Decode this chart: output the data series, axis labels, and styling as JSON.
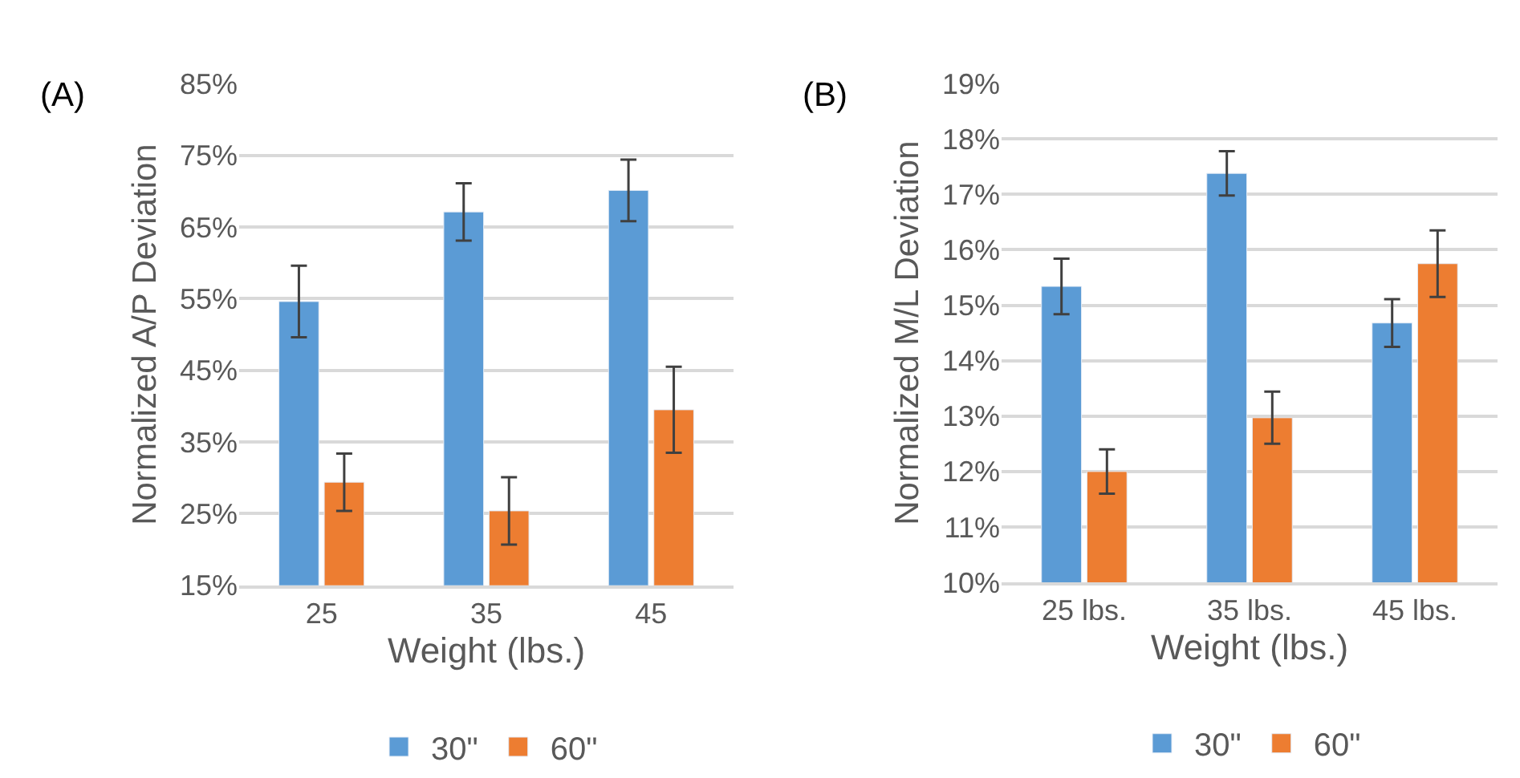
{
  "chart_data": [
    {
      "type": "bar",
      "ylabel": "Normalized A/P Deviation",
      "xlabel": "Weight (lbs.)",
      "categories": [
        "25",
        "35",
        "45"
      ],
      "series": [
        {
          "name": "30\"",
          "color": "#5b9bd5",
          "values": [
            54.6,
            67.1,
            70.1
          ],
          "errors": [
            5,
            4,
            4.3
          ]
        },
        {
          "name": "60\"",
          "color": "#ed7d31",
          "values": [
            29.4,
            25.4,
            39.5
          ],
          "errors": [
            4,
            4.7,
            6
          ]
        }
      ],
      "ylim": [
        15,
        85
      ],
      "yticks": [
        {
          "value": 15,
          "label": "15%"
        },
        {
          "value": 25,
          "label": "25%"
        },
        {
          "value": 35,
          "label": "35%"
        },
        {
          "value": 45,
          "label": "45%"
        },
        {
          "value": 55,
          "label": "55%"
        },
        {
          "value": 65,
          "label": "65%"
        },
        {
          "value": 75,
          "label": "75%"
        },
        {
          "value": 85,
          "label": "85%"
        }
      ],
      "grid": "y",
      "legend": "bottom",
      "annotations": [
        "(A)"
      ]
    },
    {
      "type": "bar",
      "ylabel": "Normalized M/L Deviation",
      "xlabel": "Weight (lbs.)",
      "categories": [
        "25 lbs.",
        "35 lbs.",
        "45 lbs."
      ],
      "series": [
        {
          "name": "30\"",
          "color": "#5b9bd5",
          "values": [
            15.34,
            17.38,
            14.68
          ],
          "errors": [
            0.5,
            0.4,
            0.43
          ]
        },
        {
          "name": "60\"",
          "color": "#ed7d31",
          "values": [
            12.0,
            12.97,
            15.75
          ],
          "errors": [
            0.4,
            0.47,
            0.6
          ]
        }
      ],
      "ylim": [
        10,
        19
      ],
      "yticks": [
        {
          "value": 10,
          "label": "10%"
        },
        {
          "value": 11,
          "label": "11%"
        },
        {
          "value": 12,
          "label": "12%"
        },
        {
          "value": 13,
          "label": "13%"
        },
        {
          "value": 14,
          "label": "14%"
        },
        {
          "value": 15,
          "label": "15%"
        },
        {
          "value": 16,
          "label": "16%"
        },
        {
          "value": 17,
          "label": "17%"
        },
        {
          "value": 18,
          "label": "18%"
        },
        {
          "value": 19,
          "label": "19%"
        }
      ],
      "grid": "y",
      "legend": "bottom",
      "annotations": [
        "(B)"
      ]
    }
  ]
}
